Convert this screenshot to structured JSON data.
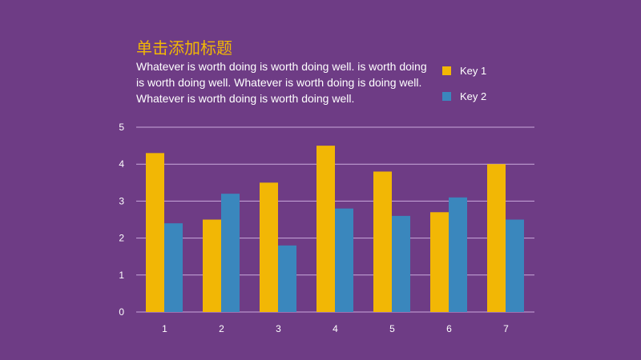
{
  "title": "单击添加标题",
  "body_text": "Whatever is worth doing is worth doing well. is worth doing is worth doing well. Whatever is worth doing is doing well. Whatever is worth doing is worth doing well.",
  "colors": {
    "background": "#6e3c85",
    "key1": "#f2b705",
    "key2": "#3a87bd",
    "grid": "#c9a9dc",
    "text": "#ffffff",
    "title": "#f2b705"
  },
  "chart_data": {
    "type": "bar",
    "categories": [
      "1",
      "2",
      "3",
      "4",
      "5",
      "6",
      "7"
    ],
    "series": [
      {
        "name": "Key 1",
        "values": [
          4.3,
          2.5,
          3.5,
          4.5,
          3.8,
          2.7,
          4.0
        ]
      },
      {
        "name": "Key 2",
        "values": [
          2.4,
          3.2,
          1.8,
          2.8,
          2.6,
          3.1,
          2.5
        ]
      }
    ],
    "ylim": [
      0,
      5
    ],
    "yticks": [
      "0",
      "1",
      "2",
      "3",
      "4",
      "5"
    ],
    "grid": true,
    "legend": "top-right"
  }
}
